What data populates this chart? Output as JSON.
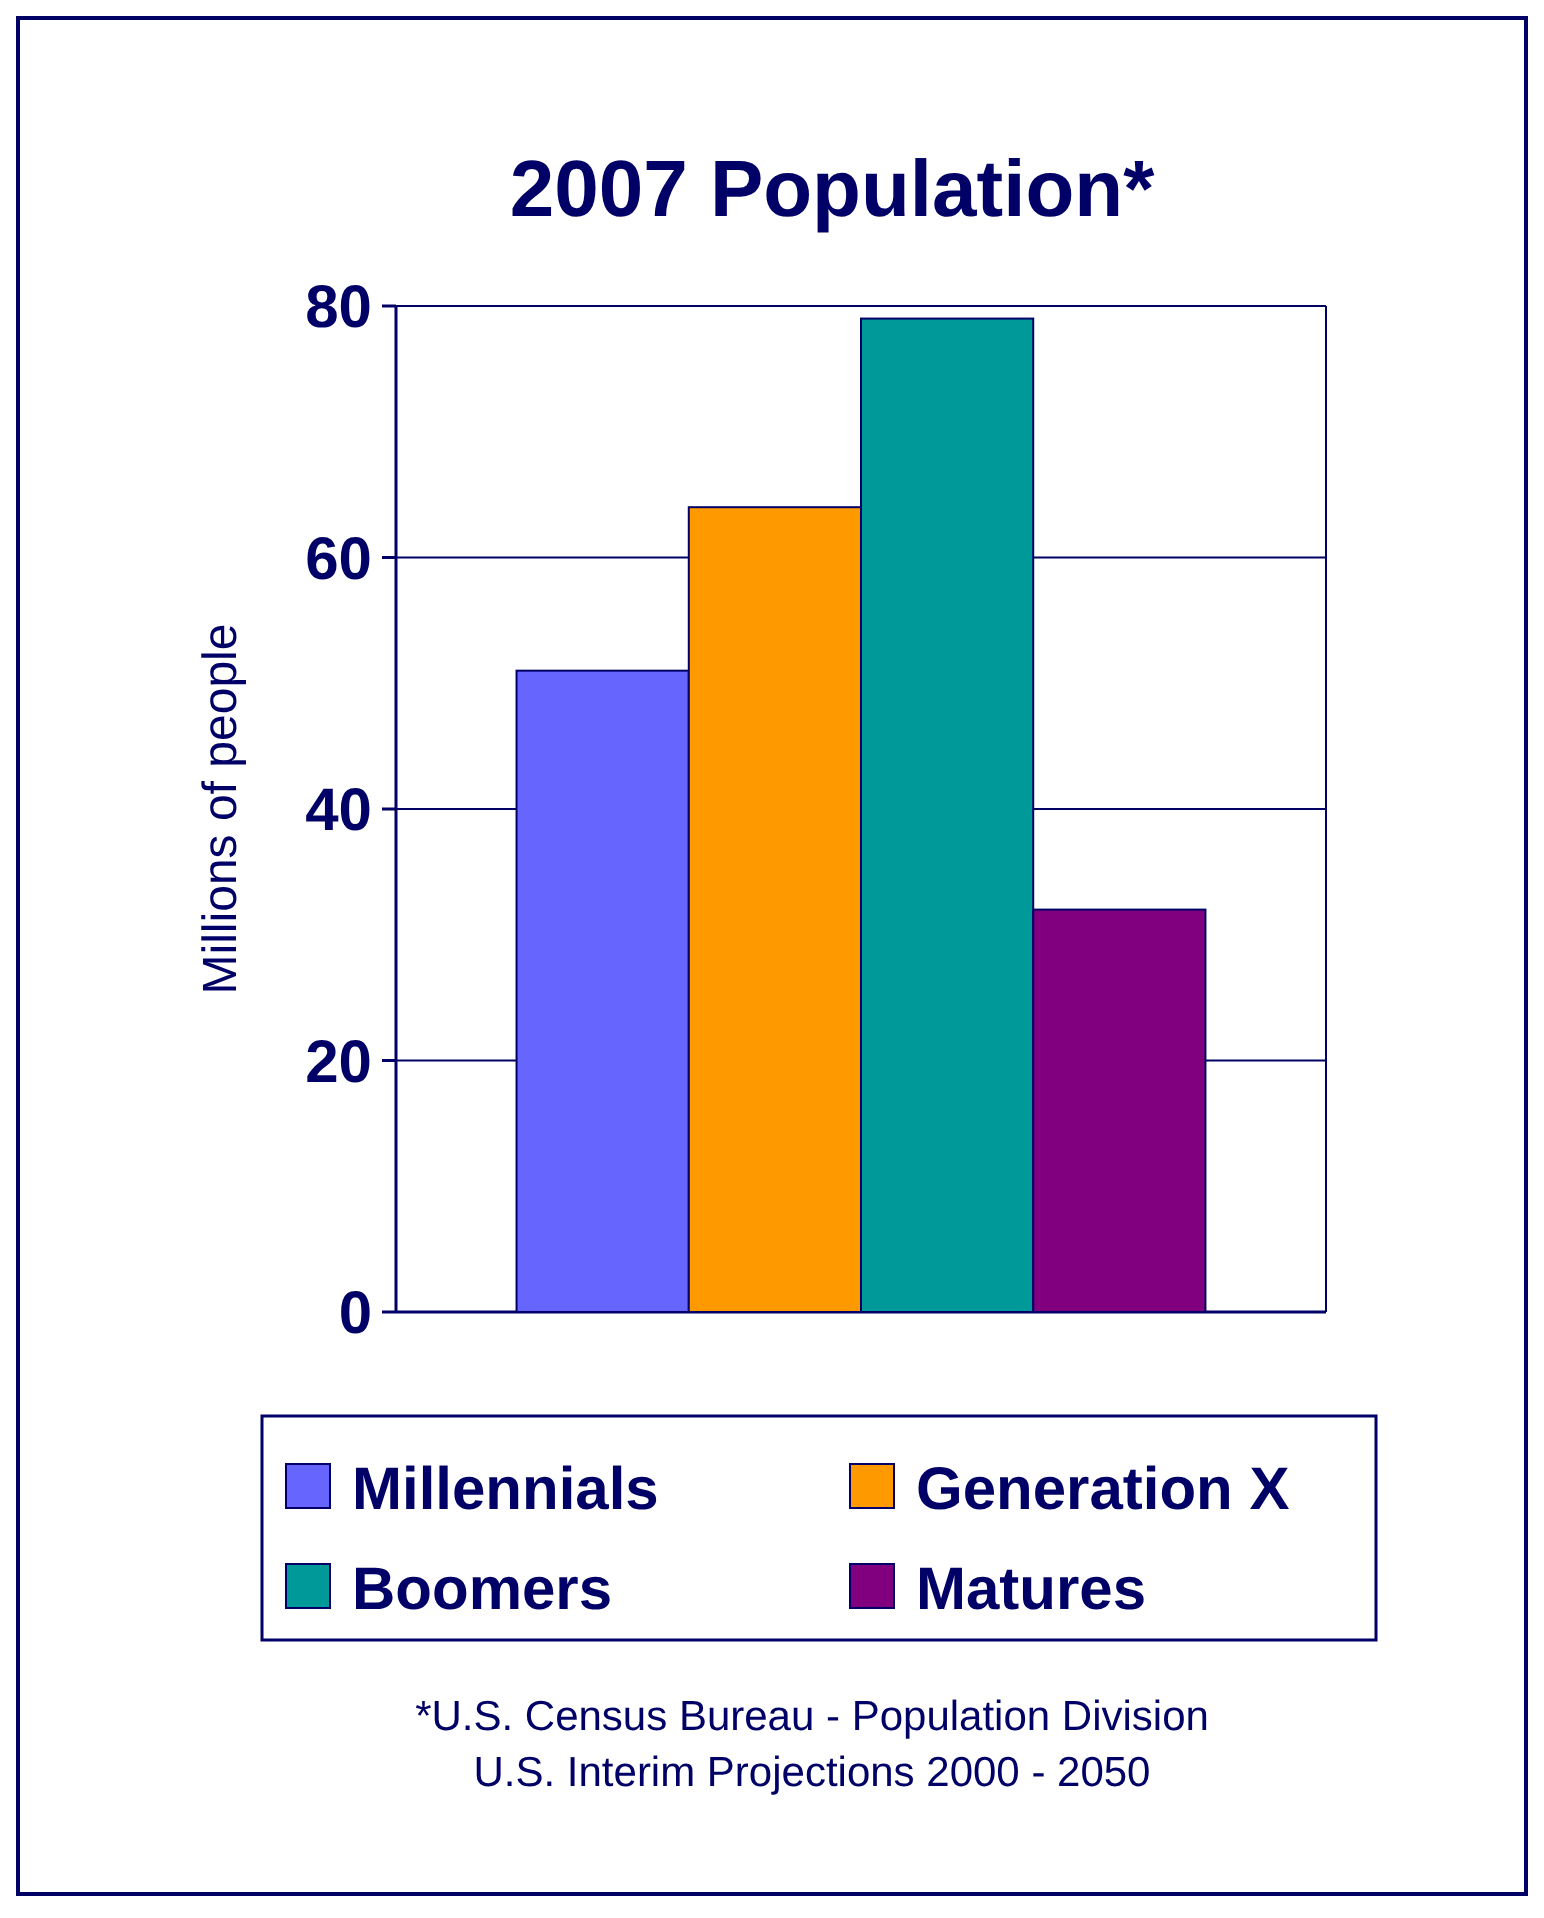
{
  "chart_data": {
    "type": "bar",
    "title": "2007 Population*",
    "ylabel": "Millions of people",
    "categories": [
      null
    ],
    "series": [
      {
        "name": "Millennials",
        "color": "#6666ff",
        "values": [
          51
        ]
      },
      {
        "name": "Generation X",
        "color": "#ff9900",
        "values": [
          64
        ]
      },
      {
        "name": "Boomers",
        "color": "#009999",
        "values": [
          79
        ]
      },
      {
        "name": "Matures",
        "color": "#800080",
        "values": [
          32
        ]
      }
    ],
    "ylim": [
      0,
      80
    ],
    "yticks": [
      0,
      20,
      40,
      60,
      80
    ],
    "grid": "y",
    "legend": "bottom",
    "annotations": [
      "*U.S. Census Bureau - Population Division",
      "U.S. Interim Projections 2000 - 2050"
    ]
  }
}
